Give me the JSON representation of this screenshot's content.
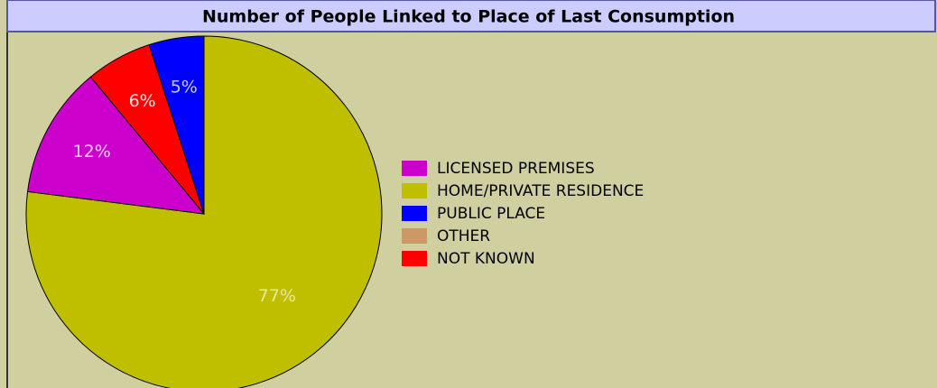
{
  "chart_data": {
    "type": "pie",
    "title": "Number of People Linked to Place of Last Consumption",
    "categories": [
      "LICENSED PREMISES",
      "HOME/PRIVATE RESIDENCE",
      "PUBLIC PLACE",
      "OTHER",
      "NOT KNOWN"
    ],
    "values": [
      12,
      77,
      5,
      0,
      6
    ],
    "value_labels": [
      "12%",
      "77%",
      "5%",
      null,
      "6%"
    ],
    "colors": [
      "#cc00cc",
      "#bfbf00",
      "#0000ff",
      "#cc9966",
      "#ff0000"
    ]
  }
}
